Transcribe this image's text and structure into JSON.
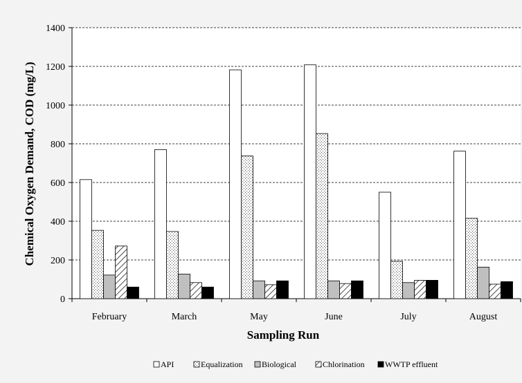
{
  "chart_data": {
    "type": "bar",
    "title": "",
    "xlabel": "Sampling Run",
    "ylabel": "Chemical Oxygen Demand, COD (mg/L)",
    "ylim": [
      0,
      1400
    ],
    "yticks": [
      "0",
      "200",
      "400",
      "600",
      "800",
      "1000",
      "1200",
      "1400"
    ],
    "grid": "horizontal dashed",
    "legend_position": "bottom",
    "categories": [
      "February",
      "March",
      "May",
      "June",
      "July",
      "August"
    ],
    "series": [
      {
        "name": "API",
        "pattern": "white",
        "values": [
          615,
          770,
          1182,
          1208,
          550,
          762
        ]
      },
      {
        "name": "Equalization",
        "pattern": "dots",
        "values": [
          353,
          347,
          737,
          853,
          193,
          415
        ]
      },
      {
        "name": "Biological",
        "pattern": "gray",
        "values": [
          122,
          127,
          92,
          92,
          83,
          163
        ]
      },
      {
        "name": "Chlorination",
        "pattern": "hatch",
        "values": [
          272,
          83,
          72,
          78,
          95,
          75
        ]
      },
      {
        "name": "WWTP effluent",
        "pattern": "black",
        "values": [
          60,
          60,
          92,
          92,
          95,
          88
        ]
      }
    ],
    "colors": {
      "background": "#f3f3f3",
      "plot": "#ffffff",
      "gray_fill": "#bfbfbf",
      "black_fill": "#000000"
    }
  }
}
